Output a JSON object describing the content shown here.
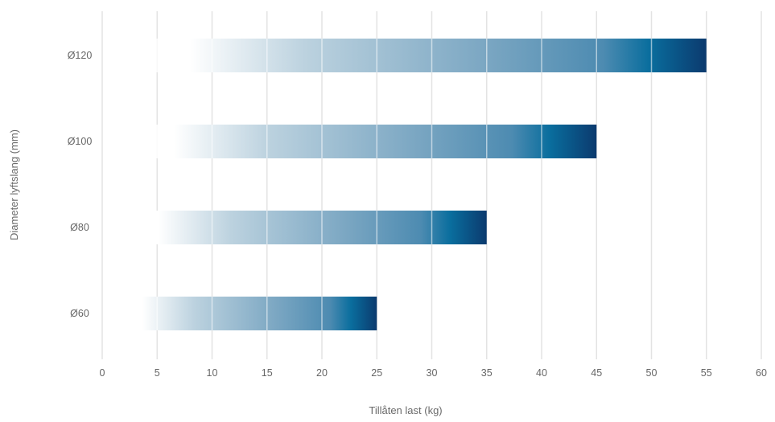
{
  "chart_data": {
    "type": "bar",
    "orientation": "horizontal",
    "categories": [
      "Ø60",
      "Ø80",
      "Ø100",
      "Ø120"
    ],
    "values": [
      25,
      35,
      45,
      55
    ],
    "xlabel": "Tillåten last (kg)",
    "ylabel": "Diameter lyftslang (mm)",
    "xlim": [
      0,
      60
    ],
    "xticks": [
      "0",
      "5",
      "10",
      "15",
      "20",
      "25",
      "30",
      "35",
      "40",
      "45",
      "50",
      "55",
      "60"
    ],
    "grid": "vertical",
    "legend": "none",
    "colors": {
      "bar_start": "#ffffff",
      "bar_mid": "#7aa6c2",
      "bar_accent": "#0a6e9e",
      "bar_end": "#0b3a6e",
      "grid": "#e3e3e3",
      "text": "#666666"
    }
  }
}
